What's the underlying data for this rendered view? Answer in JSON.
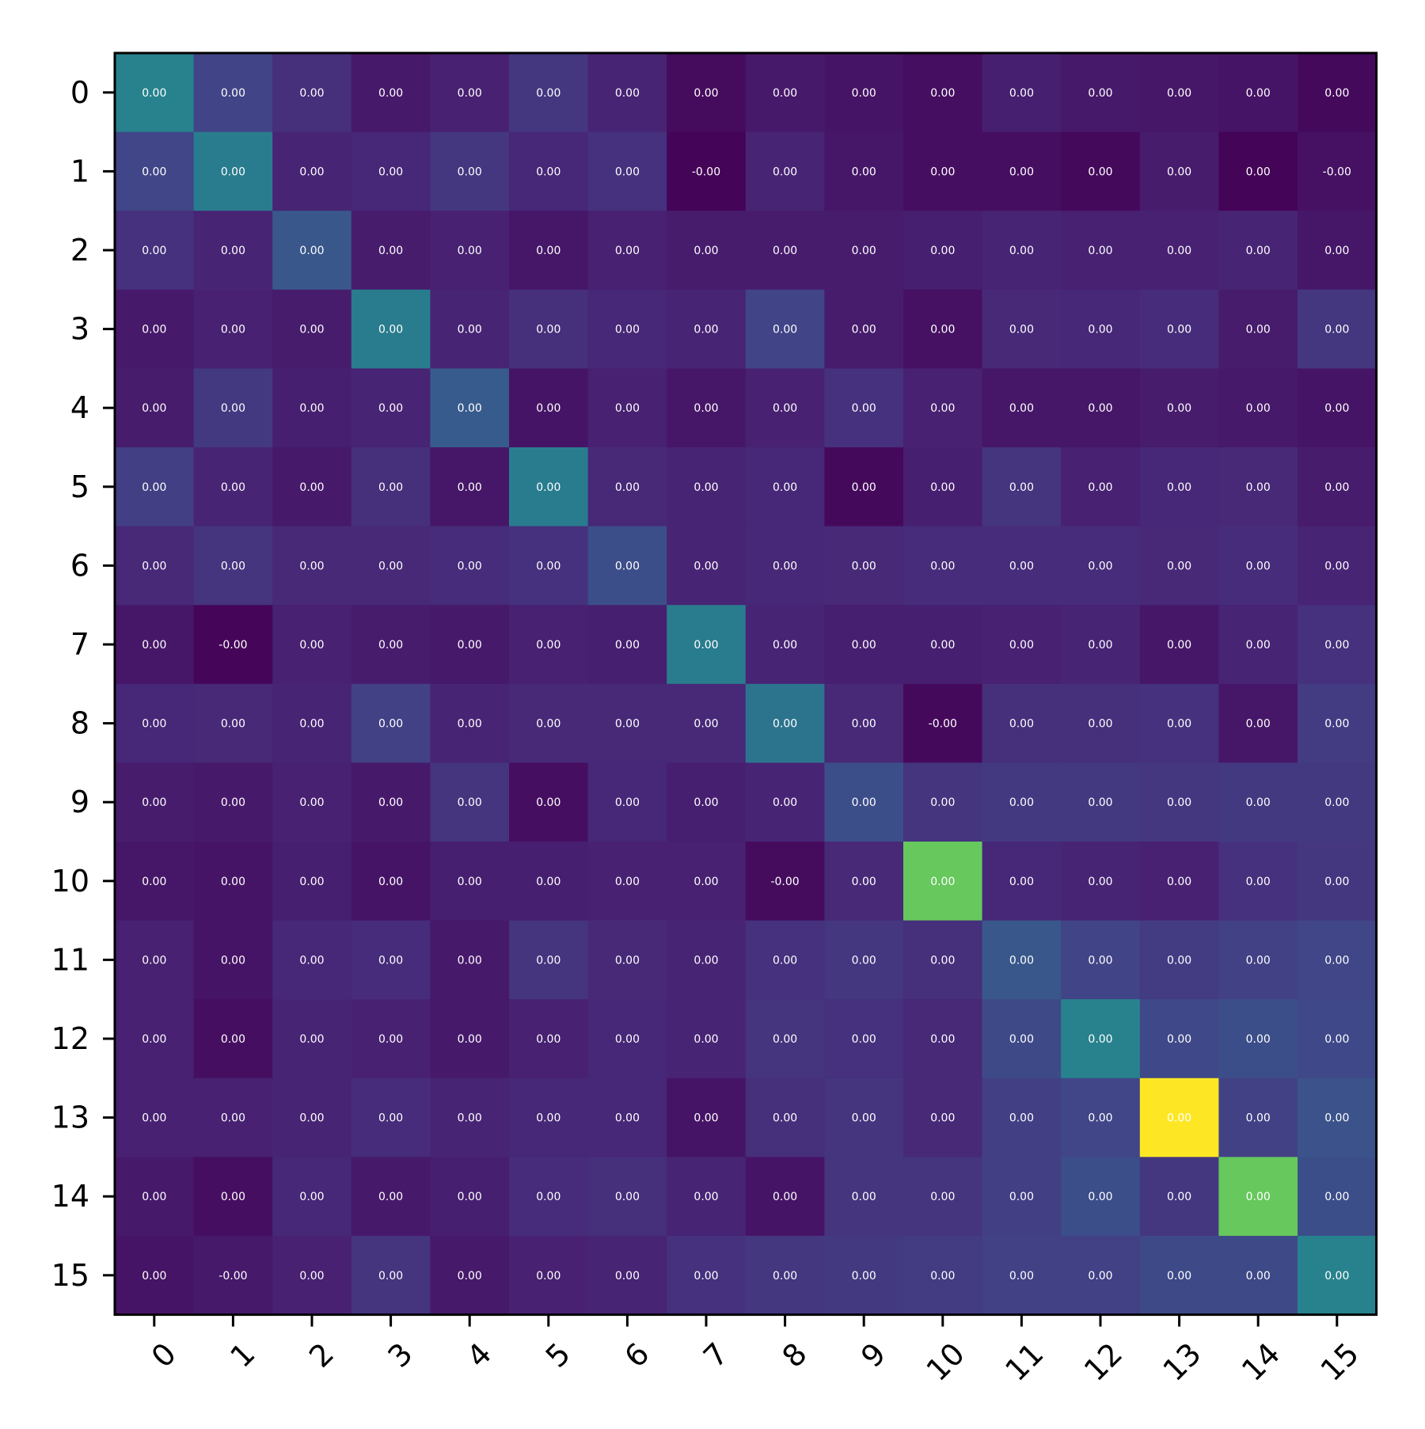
{
  "chart_data": {
    "type": "heatmap",
    "title": "",
    "xlabel": "",
    "ylabel": "",
    "colormap": "viridis",
    "x_labels": [
      "0",
      "1",
      "2",
      "3",
      "4",
      "5",
      "6",
      "7",
      "8",
      "9",
      "10",
      "11",
      "12",
      "13",
      "14",
      "15"
    ],
    "y_labels": [
      "0",
      "1",
      "2",
      "3",
      "4",
      "5",
      "6",
      "7",
      "8",
      "9",
      "10",
      "11",
      "12",
      "13",
      "14",
      "15"
    ],
    "colorscale_range": [
      0,
      1
    ],
    "color_values": [
      [
        0.55,
        0.25,
        0.17,
        0.09,
        0.12,
        0.2,
        0.13,
        0.04,
        0.09,
        0.07,
        0.05,
        0.11,
        0.09,
        0.08,
        0.07,
        0.03
      ],
      [
        0.26,
        0.52,
        0.13,
        0.14,
        0.2,
        0.14,
        0.18,
        0.01,
        0.13,
        0.08,
        0.05,
        0.05,
        0.03,
        0.1,
        0.01,
        0.06
      ],
      [
        0.18,
        0.13,
        0.34,
        0.1,
        0.12,
        0.08,
        0.12,
        0.1,
        0.1,
        0.1,
        0.11,
        0.13,
        0.12,
        0.12,
        0.13,
        0.08
      ],
      [
        0.09,
        0.12,
        0.1,
        0.52,
        0.13,
        0.17,
        0.14,
        0.13,
        0.25,
        0.1,
        0.06,
        0.15,
        0.14,
        0.16,
        0.1,
        0.2
      ],
      [
        0.1,
        0.21,
        0.11,
        0.13,
        0.36,
        0.07,
        0.12,
        0.08,
        0.12,
        0.18,
        0.12,
        0.08,
        0.08,
        0.1,
        0.09,
        0.07
      ],
      [
        0.23,
        0.13,
        0.09,
        0.17,
        0.08,
        0.52,
        0.15,
        0.13,
        0.14,
        0.03,
        0.11,
        0.19,
        0.12,
        0.14,
        0.15,
        0.1
      ],
      [
        0.15,
        0.19,
        0.15,
        0.15,
        0.16,
        0.18,
        0.3,
        0.13,
        0.14,
        0.15,
        0.16,
        0.16,
        0.16,
        0.15,
        0.16,
        0.13
      ],
      [
        0.08,
        0.02,
        0.12,
        0.1,
        0.09,
        0.12,
        0.11,
        0.52,
        0.13,
        0.11,
        0.11,
        0.12,
        0.13,
        0.08,
        0.13,
        0.18
      ],
      [
        0.14,
        0.15,
        0.13,
        0.24,
        0.13,
        0.15,
        0.15,
        0.15,
        0.48,
        0.15,
        0.03,
        0.17,
        0.17,
        0.18,
        0.08,
        0.22
      ],
      [
        0.1,
        0.09,
        0.12,
        0.09,
        0.19,
        0.05,
        0.14,
        0.11,
        0.13,
        0.3,
        0.19,
        0.21,
        0.21,
        0.2,
        0.21,
        0.21
      ],
      [
        0.08,
        0.07,
        0.11,
        0.07,
        0.11,
        0.11,
        0.12,
        0.12,
        0.04,
        0.15,
        0.85,
        0.14,
        0.13,
        0.12,
        0.18,
        0.2
      ],
      [
        0.12,
        0.07,
        0.14,
        0.16,
        0.09,
        0.19,
        0.15,
        0.13,
        0.18,
        0.2,
        0.17,
        0.34,
        0.25,
        0.22,
        0.24,
        0.26
      ],
      [
        0.12,
        0.05,
        0.13,
        0.12,
        0.09,
        0.12,
        0.14,
        0.13,
        0.19,
        0.18,
        0.15,
        0.28,
        0.55,
        0.27,
        0.3,
        0.27
      ],
      [
        0.12,
        0.12,
        0.13,
        0.16,
        0.13,
        0.14,
        0.14,
        0.07,
        0.17,
        0.19,
        0.15,
        0.23,
        0.26,
        1.0,
        0.24,
        0.32
      ],
      [
        0.09,
        0.05,
        0.14,
        0.09,
        0.11,
        0.16,
        0.17,
        0.13,
        0.07,
        0.19,
        0.19,
        0.23,
        0.3,
        0.2,
        0.85,
        0.3
      ],
      [
        0.07,
        0.09,
        0.12,
        0.19,
        0.09,
        0.12,
        0.13,
        0.18,
        0.2,
        0.21,
        0.22,
        0.24,
        0.24,
        0.28,
        0.28,
        0.55
      ]
    ],
    "cell_labels": [
      [
        "0.00",
        "0.00",
        "0.00",
        "0.00",
        "0.00",
        "0.00",
        "0.00",
        "0.00",
        "0.00",
        "0.00",
        "0.00",
        "0.00",
        "0.00",
        "0.00",
        "0.00",
        "0.00"
      ],
      [
        "0.00",
        "0.00",
        "0.00",
        "0.00",
        "0.00",
        "0.00",
        "0.00",
        "-0.00",
        "0.00",
        "0.00",
        "0.00",
        "0.00",
        "0.00",
        "0.00",
        "0.00",
        "-0.00"
      ],
      [
        "0.00",
        "0.00",
        "0.00",
        "0.00",
        "0.00",
        "0.00",
        "0.00",
        "0.00",
        "0.00",
        "0.00",
        "0.00",
        "0.00",
        "0.00",
        "0.00",
        "0.00",
        "0.00"
      ],
      [
        "0.00",
        "0.00",
        "0.00",
        "0.00",
        "0.00",
        "0.00",
        "0.00",
        "0.00",
        "0.00",
        "0.00",
        "0.00",
        "0.00",
        "0.00",
        "0.00",
        "0.00",
        "0.00"
      ],
      [
        "0.00",
        "0.00",
        "0.00",
        "0.00",
        "0.00",
        "0.00",
        "0.00",
        "0.00",
        "0.00",
        "0.00",
        "0.00",
        "0.00",
        "0.00",
        "0.00",
        "0.00",
        "0.00"
      ],
      [
        "0.00",
        "0.00",
        "0.00",
        "0.00",
        "0.00",
        "0.00",
        "0.00",
        "0.00",
        "0.00",
        "0.00",
        "0.00",
        "0.00",
        "0.00",
        "0.00",
        "0.00",
        "0.00"
      ],
      [
        "0.00",
        "0.00",
        "0.00",
        "0.00",
        "0.00",
        "0.00",
        "0.00",
        "0.00",
        "0.00",
        "0.00",
        "0.00",
        "0.00",
        "0.00",
        "0.00",
        "0.00",
        "0.00"
      ],
      [
        "0.00",
        "-0.00",
        "0.00",
        "0.00",
        "0.00",
        "0.00",
        "0.00",
        "0.00",
        "0.00",
        "0.00",
        "0.00",
        "0.00",
        "0.00",
        "0.00",
        "0.00",
        "0.00"
      ],
      [
        "0.00",
        "0.00",
        "0.00",
        "0.00",
        "0.00",
        "0.00",
        "0.00",
        "0.00",
        "0.00",
        "0.00",
        "-0.00",
        "0.00",
        "0.00",
        "0.00",
        "0.00",
        "0.00"
      ],
      [
        "0.00",
        "0.00",
        "0.00",
        "0.00",
        "0.00",
        "0.00",
        "0.00",
        "0.00",
        "0.00",
        "0.00",
        "0.00",
        "0.00",
        "0.00",
        "0.00",
        "0.00",
        "0.00"
      ],
      [
        "0.00",
        "0.00",
        "0.00",
        "0.00",
        "0.00",
        "0.00",
        "0.00",
        "0.00",
        "-0.00",
        "0.00",
        "0.00",
        "0.00",
        "0.00",
        "0.00",
        "0.00",
        "0.00"
      ],
      [
        "0.00",
        "0.00",
        "0.00",
        "0.00",
        "0.00",
        "0.00",
        "0.00",
        "0.00",
        "0.00",
        "0.00",
        "0.00",
        "0.00",
        "0.00",
        "0.00",
        "0.00",
        "0.00"
      ],
      [
        "0.00",
        "0.00",
        "0.00",
        "0.00",
        "0.00",
        "0.00",
        "0.00",
        "0.00",
        "0.00",
        "0.00",
        "0.00",
        "0.00",
        "0.00",
        "0.00",
        "0.00",
        "0.00"
      ],
      [
        "0.00",
        "0.00",
        "0.00",
        "0.00",
        "0.00",
        "0.00",
        "0.00",
        "0.00",
        "0.00",
        "0.00",
        "0.00",
        "0.00",
        "0.00",
        "0.00",
        "0.00",
        "0.00"
      ],
      [
        "0.00",
        "0.00",
        "0.00",
        "0.00",
        "0.00",
        "0.00",
        "0.00",
        "0.00",
        "0.00",
        "0.00",
        "0.00",
        "0.00",
        "0.00",
        "0.00",
        "0.00",
        "0.00"
      ],
      [
        "0.00",
        "-0.00",
        "0.00",
        "0.00",
        "0.00",
        "0.00",
        "0.00",
        "0.00",
        "0.00",
        "0.00",
        "0.00",
        "0.00",
        "0.00",
        "0.00",
        "0.00",
        "0.00"
      ]
    ],
    "grid": false,
    "legend": "none"
  }
}
